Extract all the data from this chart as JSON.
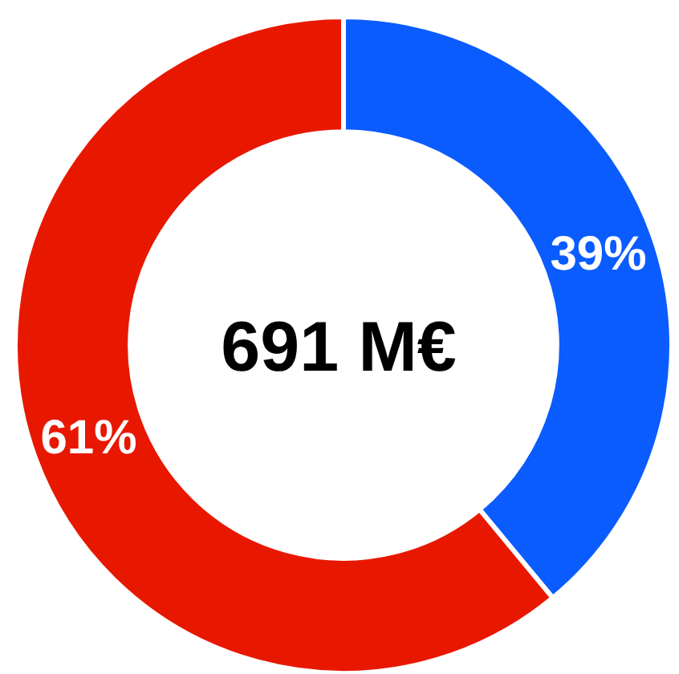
{
  "chart_data": {
    "type": "donut",
    "categories": [
      null,
      null
    ],
    "values": [
      39,
      61
    ],
    "colors": [
      "#0b5cff",
      "#e81800"
    ],
    "value_labels": [
      "39%",
      "61%"
    ],
    "annotations": [
      "691 M€"
    ]
  }
}
